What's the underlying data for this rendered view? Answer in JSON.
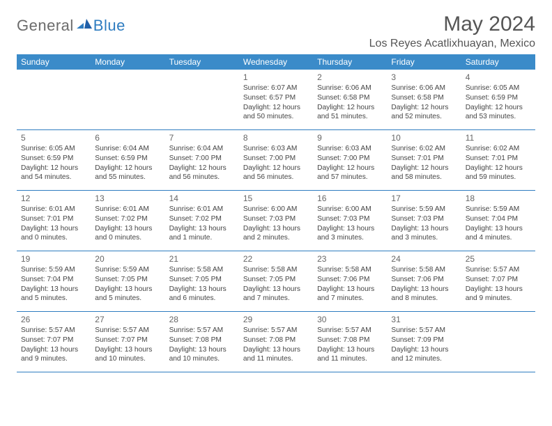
{
  "logo": {
    "general": "General",
    "blue": "Blue"
  },
  "title": "May 2024",
  "location": "Los Reyes Acatlixhuayan, Mexico",
  "colors": {
    "header_bg": "#3b8bc9",
    "header_text": "#ffffff",
    "rule": "#2e7cc0",
    "logo_gray": "#6b6b6b",
    "logo_blue": "#2e7cc0",
    "title_color": "#555555",
    "body_text": "#444444",
    "daynum_text": "#666666",
    "page_bg": "#ffffff"
  },
  "typography": {
    "title_fontsize": 30,
    "location_fontsize": 16,
    "weekday_fontsize": 12,
    "daynum_fontsize": 12,
    "body_fontsize": 10.2,
    "logo_fontsize": 22
  },
  "weekdays": [
    "Sunday",
    "Monday",
    "Tuesday",
    "Wednesday",
    "Thursday",
    "Friday",
    "Saturday"
  ],
  "weeks": [
    [
      {
        "day": "",
        "sunrise": "",
        "sunset": "",
        "dl1": "",
        "dl2": ""
      },
      {
        "day": "",
        "sunrise": "",
        "sunset": "",
        "dl1": "",
        "dl2": ""
      },
      {
        "day": "",
        "sunrise": "",
        "sunset": "",
        "dl1": "",
        "dl2": ""
      },
      {
        "day": "1",
        "sunrise": "Sunrise: 6:07 AM",
        "sunset": "Sunset: 6:57 PM",
        "dl1": "Daylight: 12 hours",
        "dl2": "and 50 minutes."
      },
      {
        "day": "2",
        "sunrise": "Sunrise: 6:06 AM",
        "sunset": "Sunset: 6:58 PM",
        "dl1": "Daylight: 12 hours",
        "dl2": "and 51 minutes."
      },
      {
        "day": "3",
        "sunrise": "Sunrise: 6:06 AM",
        "sunset": "Sunset: 6:58 PM",
        "dl1": "Daylight: 12 hours",
        "dl2": "and 52 minutes."
      },
      {
        "day": "4",
        "sunrise": "Sunrise: 6:05 AM",
        "sunset": "Sunset: 6:59 PM",
        "dl1": "Daylight: 12 hours",
        "dl2": "and 53 minutes."
      }
    ],
    [
      {
        "day": "5",
        "sunrise": "Sunrise: 6:05 AM",
        "sunset": "Sunset: 6:59 PM",
        "dl1": "Daylight: 12 hours",
        "dl2": "and 54 minutes."
      },
      {
        "day": "6",
        "sunrise": "Sunrise: 6:04 AM",
        "sunset": "Sunset: 6:59 PM",
        "dl1": "Daylight: 12 hours",
        "dl2": "and 55 minutes."
      },
      {
        "day": "7",
        "sunrise": "Sunrise: 6:04 AM",
        "sunset": "Sunset: 7:00 PM",
        "dl1": "Daylight: 12 hours",
        "dl2": "and 56 minutes."
      },
      {
        "day": "8",
        "sunrise": "Sunrise: 6:03 AM",
        "sunset": "Sunset: 7:00 PM",
        "dl1": "Daylight: 12 hours",
        "dl2": "and 56 minutes."
      },
      {
        "day": "9",
        "sunrise": "Sunrise: 6:03 AM",
        "sunset": "Sunset: 7:00 PM",
        "dl1": "Daylight: 12 hours",
        "dl2": "and 57 minutes."
      },
      {
        "day": "10",
        "sunrise": "Sunrise: 6:02 AM",
        "sunset": "Sunset: 7:01 PM",
        "dl1": "Daylight: 12 hours",
        "dl2": "and 58 minutes."
      },
      {
        "day": "11",
        "sunrise": "Sunrise: 6:02 AM",
        "sunset": "Sunset: 7:01 PM",
        "dl1": "Daylight: 12 hours",
        "dl2": "and 59 minutes."
      }
    ],
    [
      {
        "day": "12",
        "sunrise": "Sunrise: 6:01 AM",
        "sunset": "Sunset: 7:01 PM",
        "dl1": "Daylight: 13 hours",
        "dl2": "and 0 minutes."
      },
      {
        "day": "13",
        "sunrise": "Sunrise: 6:01 AM",
        "sunset": "Sunset: 7:02 PM",
        "dl1": "Daylight: 13 hours",
        "dl2": "and 0 minutes."
      },
      {
        "day": "14",
        "sunrise": "Sunrise: 6:01 AM",
        "sunset": "Sunset: 7:02 PM",
        "dl1": "Daylight: 13 hours",
        "dl2": "and 1 minute."
      },
      {
        "day": "15",
        "sunrise": "Sunrise: 6:00 AM",
        "sunset": "Sunset: 7:03 PM",
        "dl1": "Daylight: 13 hours",
        "dl2": "and 2 minutes."
      },
      {
        "day": "16",
        "sunrise": "Sunrise: 6:00 AM",
        "sunset": "Sunset: 7:03 PM",
        "dl1": "Daylight: 13 hours",
        "dl2": "and 3 minutes."
      },
      {
        "day": "17",
        "sunrise": "Sunrise: 5:59 AM",
        "sunset": "Sunset: 7:03 PM",
        "dl1": "Daylight: 13 hours",
        "dl2": "and 3 minutes."
      },
      {
        "day": "18",
        "sunrise": "Sunrise: 5:59 AM",
        "sunset": "Sunset: 7:04 PM",
        "dl1": "Daylight: 13 hours",
        "dl2": "and 4 minutes."
      }
    ],
    [
      {
        "day": "19",
        "sunrise": "Sunrise: 5:59 AM",
        "sunset": "Sunset: 7:04 PM",
        "dl1": "Daylight: 13 hours",
        "dl2": "and 5 minutes."
      },
      {
        "day": "20",
        "sunrise": "Sunrise: 5:59 AM",
        "sunset": "Sunset: 7:05 PM",
        "dl1": "Daylight: 13 hours",
        "dl2": "and 5 minutes."
      },
      {
        "day": "21",
        "sunrise": "Sunrise: 5:58 AM",
        "sunset": "Sunset: 7:05 PM",
        "dl1": "Daylight: 13 hours",
        "dl2": "and 6 minutes."
      },
      {
        "day": "22",
        "sunrise": "Sunrise: 5:58 AM",
        "sunset": "Sunset: 7:05 PM",
        "dl1": "Daylight: 13 hours",
        "dl2": "and 7 minutes."
      },
      {
        "day": "23",
        "sunrise": "Sunrise: 5:58 AM",
        "sunset": "Sunset: 7:06 PM",
        "dl1": "Daylight: 13 hours",
        "dl2": "and 7 minutes."
      },
      {
        "day": "24",
        "sunrise": "Sunrise: 5:58 AM",
        "sunset": "Sunset: 7:06 PM",
        "dl1": "Daylight: 13 hours",
        "dl2": "and 8 minutes."
      },
      {
        "day": "25",
        "sunrise": "Sunrise: 5:57 AM",
        "sunset": "Sunset: 7:07 PM",
        "dl1": "Daylight: 13 hours",
        "dl2": "and 9 minutes."
      }
    ],
    [
      {
        "day": "26",
        "sunrise": "Sunrise: 5:57 AM",
        "sunset": "Sunset: 7:07 PM",
        "dl1": "Daylight: 13 hours",
        "dl2": "and 9 minutes."
      },
      {
        "day": "27",
        "sunrise": "Sunrise: 5:57 AM",
        "sunset": "Sunset: 7:07 PM",
        "dl1": "Daylight: 13 hours",
        "dl2": "and 10 minutes."
      },
      {
        "day": "28",
        "sunrise": "Sunrise: 5:57 AM",
        "sunset": "Sunset: 7:08 PM",
        "dl1": "Daylight: 13 hours",
        "dl2": "and 10 minutes."
      },
      {
        "day": "29",
        "sunrise": "Sunrise: 5:57 AM",
        "sunset": "Sunset: 7:08 PM",
        "dl1": "Daylight: 13 hours",
        "dl2": "and 11 minutes."
      },
      {
        "day": "30",
        "sunrise": "Sunrise: 5:57 AM",
        "sunset": "Sunset: 7:08 PM",
        "dl1": "Daylight: 13 hours",
        "dl2": "and 11 minutes."
      },
      {
        "day": "31",
        "sunrise": "Sunrise: 5:57 AM",
        "sunset": "Sunset: 7:09 PM",
        "dl1": "Daylight: 13 hours",
        "dl2": "and 12 minutes."
      },
      {
        "day": "",
        "sunrise": "",
        "sunset": "",
        "dl1": "",
        "dl2": ""
      }
    ]
  ]
}
